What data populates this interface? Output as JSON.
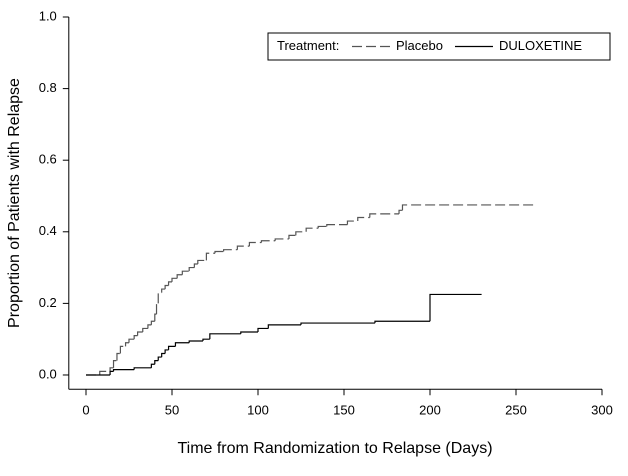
{
  "chart_data": {
    "type": "step",
    "x_label": "Time from Randomization to Relapse (Days)",
    "y_label": "Proportion of Patients with Relapse",
    "legend_title": "Treatment:",
    "legend_position": "upper right",
    "xlim": [
      -10,
      300
    ],
    "xticks": [
      0,
      50,
      100,
      150,
      200,
      250,
      300
    ],
    "ylim": [
      -0.04,
      1.0
    ],
    "yticks": [
      {
        "value": 0,
        "label": "0.0"
      },
      0.2,
      0.4,
      0.6,
      0.8,
      {
        "value": 1,
        "label": "1.0"
      }
    ],
    "series": [
      {
        "name": "Placebo",
        "color": "#555555",
        "dashed": true,
        "x": [
          0,
          8,
          14,
          16,
          18,
          20,
          23,
          25,
          28,
          30,
          33,
          36,
          38,
          40,
          41,
          42,
          44,
          46,
          48,
          50,
          53,
          56,
          60,
          63,
          65,
          70,
          75,
          80,
          88,
          95,
          102,
          110,
          118,
          122,
          128,
          135,
          140,
          152,
          158,
          165,
          182,
          184,
          262
        ],
        "values": [
          0,
          0.01,
          0.02,
          0.04,
          0.06,
          0.08,
          0.09,
          0.1,
          0.11,
          0.12,
          0.13,
          0.14,
          0.15,
          0.17,
          0.2,
          0.23,
          0.24,
          0.25,
          0.26,
          0.27,
          0.28,
          0.29,
          0.3,
          0.31,
          0.32,
          0.34,
          0.345,
          0.35,
          0.36,
          0.37,
          0.375,
          0.38,
          0.39,
          0.4,
          0.41,
          0.415,
          0.42,
          0.43,
          0.44,
          0.45,
          0.46,
          0.475,
          0.475
        ]
      },
      {
        "name": "DULOXETINE",
        "color": "#000000",
        "dashed": false,
        "x": [
          0,
          14,
          16,
          28,
          38,
          40,
          42,
          44,
          46,
          48,
          52,
          60,
          68,
          72,
          90,
          100,
          106,
          125,
          168,
          200,
          230
        ],
        "values": [
          0,
          0.01,
          0.015,
          0.02,
          0.03,
          0.04,
          0.05,
          0.06,
          0.07,
          0.08,
          0.09,
          0.095,
          0.1,
          0.115,
          0.12,
          0.13,
          0.14,
          0.145,
          0.15,
          0.225,
          0.225
        ]
      }
    ]
  }
}
